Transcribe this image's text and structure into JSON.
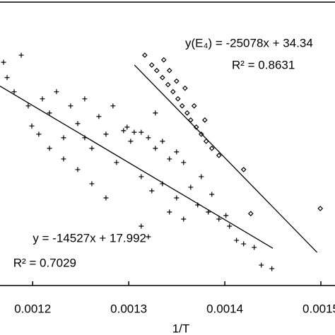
{
  "chart_data": {
    "type": "scatter",
    "xlabel": "1/T",
    "xlim": [
      0.001166,
      0.0015147
    ],
    "ylim": [
      -4.02,
      3.19
    ],
    "xticks": [
      0.0012,
      0.0013,
      0.0014,
      0.0015
    ],
    "annotations": [
      {
        "text": "y(E₄) = -25078x + 34.34"
      },
      {
        "text": "R² = 0.8631"
      },
      {
        "text": "y = -14527x + 17.992"
      },
      {
        "text": "R² = 0.7029"
      }
    ],
    "fits": [
      {
        "slope": -14527,
        "intercept": 17.992,
        "x": [
          0.001166,
          0.00145
        ]
      },
      {
        "slope": -25078,
        "intercept": 34.34,
        "x": [
          0.0013059,
          0.001496
        ]
      }
    ],
    "series": [
      {
        "marker": "plus",
        "color": "#000000",
        "x": [
          0.0011697,
          0.0011881,
          0.0011734,
          0.0011807,
          0.0011954,
          0.0011991,
          0.0012101,
          0.0012175,
          0.0012248,
          0.0012322,
          0.0012395,
          0.0012469,
          0.0012542,
          0.0012616,
          0.0012689,
          0.0012763,
          0.0012836,
          0.0012873,
          0.0012946,
          0.001302,
          0.0013057,
          0.001313,
          0.0013204,
          0.0013277,
          0.0013351,
          0.0013424,
          0.0013498,
          0.0013571,
          0.001313,
          0.001324,
          0.0013351,
          0.0013498,
          0.0013645,
          0.0013718,
          0.0013828,
          0.0013939,
          0.0014049,
          0.0014122,
          0.0014196,
          0.0014306,
          0.001438,
          0.001449,
          0.001313,
          0.0013204,
          0.0012763,
          0.0012616,
          0.0012469,
          0.0012322,
          0.0012175,
          0.0013755,
          0.0013865,
          0.0014012,
          0.0013424,
          0.0013571,
          0.0013277,
          0.0012983,
          0.0012542,
          0.0012064
        ],
        "values": [
          1.66,
          1.84,
          1.27,
          0.91,
          0.55,
          0.04,
          0.73,
          0.37,
          0.91,
          -0.26,
          0.55,
          0.1,
          0.73,
          -0.53,
          0.28,
          -0.17,
          0.55,
          -0.89,
          -0.08,
          -0.35,
          -0.12,
          -0.12,
          -0.26,
          -0.53,
          -0.35,
          -0.8,
          -0.62,
          -0.89,
          -1.25,
          -1.61,
          -1.43,
          -1.79,
          -1.52,
          -1.97,
          -2.15,
          -2.33,
          -2.51,
          -2.87,
          -2.96,
          -3.05,
          -3.5,
          -3.59,
          -2.51,
          -2.78,
          -1.79,
          -1.43,
          -1.07,
          -0.8,
          -0.53,
          -1.25,
          -1.7,
          -2.24,
          -2.15,
          -2.33,
          0.37,
          0.01,
          -0.26,
          -0.17
        ]
      },
      {
        "marker": "diamond",
        "color": "#000000",
        "x": [
          0.0013167,
          0.001324,
          0.0013292,
          0.0013351,
          0.0013409,
          0.0013461,
          0.0013512,
          0.0013556,
          0.0013608,
          0.0013645,
          0.0013703,
          0.0013755,
          0.0013806,
          0.0013865,
          0.0013365,
          0.0013424,
          0.0013498,
          0.0013586,
          0.0013681,
          0.0013792,
          0.0013939,
          0.0014196,
          0.001427,
          0.0014994
        ],
        "values": [
          1.84,
          1.59,
          1.45,
          1.27,
          1.09,
          0.91,
          0.73,
          0.55,
          0.37,
          0.19,
          0.01,
          -0.17,
          -0.35,
          -0.53,
          1.72,
          1.45,
          1.18,
          1.0,
          0.55,
          0.19,
          -0.71,
          -1.07,
          -2.19,
          -2.06
        ]
      }
    ]
  }
}
